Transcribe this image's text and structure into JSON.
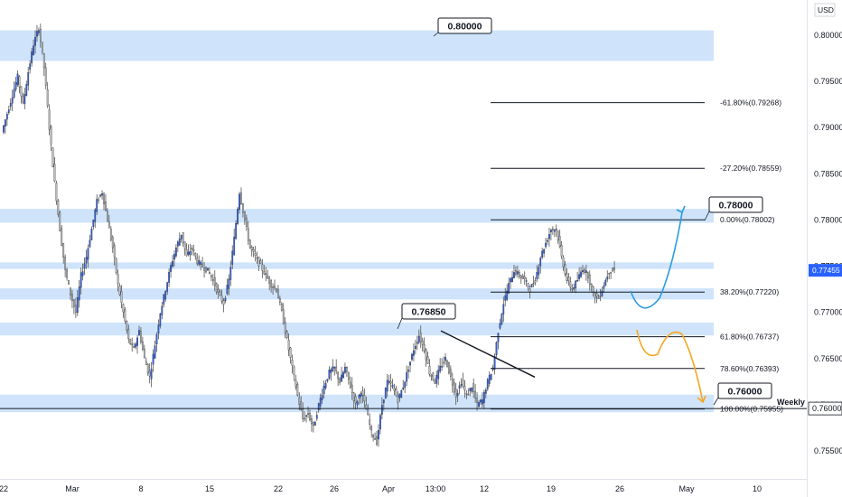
{
  "chart_data": {
    "type": "candlestick",
    "currency": "USD",
    "current_price": "0.77455",
    "y_ticks": [
      "0.80000",
      "0.79500",
      "0.79000",
      "0.78500",
      "0.78000",
      "0.77500",
      "0.77000",
      "0.76500",
      "0.76000",
      "0.75500"
    ],
    "x_ticks": [
      "22",
      "Mar",
      "8",
      "15",
      "22",
      "26",
      "Apr",
      "13:00",
      "12",
      "19",
      "26",
      "May",
      "10"
    ],
    "callouts": [
      "0.80000",
      "0.78000",
      "0.76850",
      "0.76000"
    ],
    "fib_levels": [
      {
        "label": "-61.80%(0.79268)",
        "price": 0.79268
      },
      {
        "label": "-27.20%(0.78559)",
        "price": 0.78559
      },
      {
        "label": "0.00%(0.78002)",
        "price": 0.78002
      },
      {
        "label": "38.20%(0.77220)",
        "price": 0.7722
      },
      {
        "label": "61.80%(0.76737)",
        "price": 0.76737
      },
      {
        "label": "78.60%(0.76393)",
        "price": 0.76393
      },
      {
        "label": "100.00%(0.75955)",
        "price": 0.75955
      }
    ],
    "zones": [
      {
        "from": 0.7972,
        "to": 0.8005
      },
      {
        "from": 0.7797,
        "to": 0.7812
      },
      {
        "from": 0.7747,
        "to": 0.7754
      },
      {
        "from": 0.7714,
        "to": 0.7726
      },
      {
        "from": 0.7675,
        "to": 0.7689
      },
      {
        "from": 0.7592,
        "to": 0.7611
      }
    ],
    "weekly_level": {
      "label": "Weekly",
      "price": 0.7596
    },
    "price_path": [
      [
        0,
        0.7895
      ],
      [
        0.6,
        0.7915
      ],
      [
        1.2,
        0.7935
      ],
      [
        1.8,
        0.7955
      ],
      [
        2.4,
        0.7925
      ],
      [
        3.0,
        0.796
      ],
      [
        3.6,
        0.799
      ],
      [
        4.2,
        0.8008
      ],
      [
        4.8,
        0.7965
      ],
      [
        5.4,
        0.79
      ],
      [
        6.0,
        0.784
      ],
      [
        6.6,
        0.779
      ],
      [
        7.2,
        0.7745
      ],
      [
        7.8,
        0.772
      ],
      [
        8.4,
        0.77
      ],
      [
        9.0,
        0.774
      ],
      [
        9.6,
        0.776
      ],
      [
        10.2,
        0.779
      ],
      [
        10.8,
        0.782
      ],
      [
        11.4,
        0.783
      ],
      [
        12.0,
        0.78
      ],
      [
        12.6,
        0.777
      ],
      [
        13.2,
        0.773
      ],
      [
        13.8,
        0.77
      ],
      [
        14.4,
        0.767
      ],
      [
        15.0,
        0.766
      ],
      [
        15.6,
        0.768
      ],
      [
        16.2,
        0.765
      ],
      [
        16.8,
        0.763
      ],
      [
        17.4,
        0.7665
      ],
      [
        18.0,
        0.77
      ],
      [
        18.6,
        0.7725
      ],
      [
        19.2,
        0.775
      ],
      [
        19.8,
        0.777
      ],
      [
        20.4,
        0.7785
      ],
      [
        21.0,
        0.776
      ],
      [
        21.6,
        0.777
      ],
      [
        22.2,
        0.7755
      ],
      [
        22.8,
        0.775
      ],
      [
        23.4,
        0.7745
      ],
      [
        24.0,
        0.7735
      ],
      [
        24.6,
        0.772
      ],
      [
        25.2,
        0.771
      ],
      [
        25.8,
        0.7735
      ],
      [
        26.4,
        0.778
      ],
      [
        27.0,
        0.783
      ],
      [
        27.6,
        0.78
      ],
      [
        28.2,
        0.777
      ],
      [
        28.8,
        0.776
      ],
      [
        29.4,
        0.775
      ],
      [
        30.0,
        0.774
      ],
      [
        30.6,
        0.773
      ],
      [
        31.2,
        0.7725
      ],
      [
        31.8,
        0.77
      ],
      [
        32.4,
        0.767
      ],
      [
        33.0,
        0.764
      ],
      [
        33.6,
        0.761
      ],
      [
        34.2,
        0.7585
      ],
      [
        34.8,
        0.759
      ],
      [
        35.4,
        0.7575
      ],
      [
        36.0,
        0.76
      ],
      [
        36.6,
        0.762
      ],
      [
        37.2,
        0.7635
      ],
      [
        37.8,
        0.764
      ],
      [
        38.4,
        0.7625
      ],
      [
        39.0,
        0.764
      ],
      [
        39.6,
        0.762
      ],
      [
        40.2,
        0.76
      ],
      [
        40.8,
        0.7615
      ],
      [
        41.4,
        0.7595
      ],
      [
        42.0,
        0.757
      ],
      [
        42.6,
        0.756
      ],
      [
        43.2,
        0.76
      ],
      [
        43.8,
        0.7625
      ],
      [
        44.4,
        0.762
      ],
      [
        45.0,
        0.7605
      ],
      [
        45.6,
        0.762
      ],
      [
        46.2,
        0.764
      ],
      [
        46.8,
        0.766
      ],
      [
        47.4,
        0.7675
      ],
      [
        48.0,
        0.766
      ],
      [
        48.6,
        0.7635
      ],
      [
        49.2,
        0.7625
      ],
      [
        49.8,
        0.764
      ],
      [
        50.4,
        0.765
      ],
      [
        51.0,
        0.763
      ],
      [
        51.6,
        0.761
      ],
      [
        52.2,
        0.7625
      ],
      [
        52.8,
        0.761
      ],
      [
        53.4,
        0.762
      ],
      [
        54.0,
        0.76
      ],
      [
        54.6,
        0.7605
      ],
      [
        55.2,
        0.7625
      ],
      [
        55.8,
        0.764
      ],
      [
        56.4,
        0.768
      ],
      [
        57.0,
        0.771
      ],
      [
        57.6,
        0.773
      ],
      [
        58.2,
        0.7745
      ],
      [
        58.8,
        0.774
      ],
      [
        59.4,
        0.7735
      ],
      [
        60.0,
        0.7725
      ],
      [
        60.6,
        0.7735
      ],
      [
        61.2,
        0.776
      ],
      [
        61.8,
        0.7775
      ],
      [
        62.4,
        0.779
      ],
      [
        63.0,
        0.779
      ],
      [
        63.6,
        0.776
      ],
      [
        64.2,
        0.7735
      ],
      [
        64.8,
        0.7725
      ],
      [
        65.4,
        0.7735
      ],
      [
        66.0,
        0.7748
      ],
      [
        66.6,
        0.774
      ],
      [
        67.2,
        0.772
      ],
      [
        67.8,
        0.7715
      ],
      [
        68.4,
        0.773
      ],
      [
        69.0,
        0.7745
      ],
      [
        69.6,
        0.7746
      ]
    ]
  },
  "colors": {
    "bull": "#2962ff",
    "bear": "#c8cbd3",
    "zone": "#cfe4fb",
    "current_price_bg": "#2962ff",
    "projection_up": "#2b9be0",
    "projection_alt": "#f5a623"
  }
}
